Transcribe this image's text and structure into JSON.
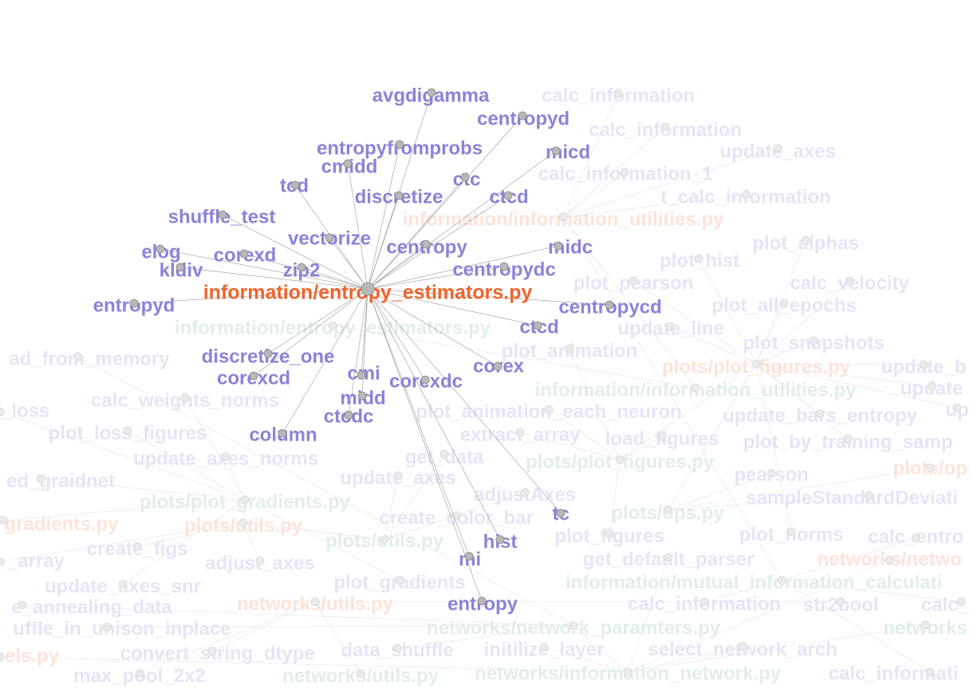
{
  "colors": {
    "focus": "#f0642a",
    "neighbor": "#8a83d8",
    "faded_green": "#e0efe9",
    "faded_purple": "#e7e5f5",
    "faded_orange": "#fde3d8"
  },
  "focus_node": {
    "label": "information/entropy_estimators.py"
  },
  "neighbor_nodes": [
    {
      "label": "avgdigamma"
    },
    {
      "label": "centropyd"
    },
    {
      "label": "entropyfromprobs"
    },
    {
      "label": "micd"
    },
    {
      "label": "cmidd"
    },
    {
      "label": "ctc"
    },
    {
      "label": "tcd"
    },
    {
      "label": "discretize"
    },
    {
      "label": "ctcd"
    },
    {
      "label": "shuffle_test"
    },
    {
      "label": "vectorize"
    },
    {
      "label": "centropy"
    },
    {
      "label": "midc"
    },
    {
      "label": "elog"
    },
    {
      "label": "corexd"
    },
    {
      "label": "kldiv"
    },
    {
      "label": "zip2"
    },
    {
      "label": "centropydc"
    },
    {
      "label": "entropyd"
    },
    {
      "label": "centropycd"
    },
    {
      "label": "ctcd"
    },
    {
      "label": "discretize_one"
    },
    {
      "label": "corex"
    },
    {
      "label": "corexcd"
    },
    {
      "label": "cmi"
    },
    {
      "label": "corexdc"
    },
    {
      "label": "midd"
    },
    {
      "label": "ctcdc"
    },
    {
      "label": "column"
    },
    {
      "label": "tc"
    },
    {
      "label": "hist"
    },
    {
      "label": "mi"
    },
    {
      "label": "entropy"
    }
  ],
  "background_nodes": [
    {
      "label": "calc_information",
      "tone": "purple"
    },
    {
      "label": "calc_information",
      "tone": "purple"
    },
    {
      "label": "update_axes",
      "tone": "purple"
    },
    {
      "label": "calc_information_1",
      "tone": "purple"
    },
    {
      "label": "t_calc_information",
      "tone": "purple"
    },
    {
      "label": "information/information_utilities.py",
      "tone": "orange"
    },
    {
      "label": "plot_alphas",
      "tone": "purple"
    },
    {
      "label": "plot_hist",
      "tone": "purple"
    },
    {
      "label": "plot_pearson",
      "tone": "purple"
    },
    {
      "label": "calc_velocity",
      "tone": "purple"
    },
    {
      "label": "plot_all_epochs",
      "tone": "purple"
    },
    {
      "label": "information/entropy_estimators.py",
      "tone": "green"
    },
    {
      "label": "update_line",
      "tone": "purple"
    },
    {
      "label": "plot_snapshots",
      "tone": "purple"
    },
    {
      "label": "ad_from_memory",
      "tone": "purple"
    },
    {
      "label": "plot_animation",
      "tone": "purple"
    },
    {
      "label": "plots/plot_figures.py",
      "tone": "orange"
    },
    {
      "label": "update_b",
      "tone": "purple"
    },
    {
      "label": "information/information_utilities.py",
      "tone": "green"
    },
    {
      "label": "update",
      "tone": "purple"
    },
    {
      "label": "r_loss",
      "tone": "purple"
    },
    {
      "label": "calc_weights_norms",
      "tone": "purple"
    },
    {
      "label": "plot_animation_each_neuron",
      "tone": "purple"
    },
    {
      "label": "update_bars_entropy",
      "tone": "purple"
    },
    {
      "label": "up",
      "tone": "purple"
    },
    {
      "label": "plot_loss_figures",
      "tone": "purple"
    },
    {
      "label": "extract_array",
      "tone": "purple"
    },
    {
      "label": "load_figures",
      "tone": "purple"
    },
    {
      "label": "plot_by_training_samp",
      "tone": "purple"
    },
    {
      "label": "update_axes_norms",
      "tone": "purple"
    },
    {
      "label": "get_data",
      "tone": "purple"
    },
    {
      "label": "plots/plot_figures.py",
      "tone": "green"
    },
    {
      "label": "plots/op",
      "tone": "orange"
    },
    {
      "label": "ed_graidnet",
      "tone": "purple"
    },
    {
      "label": "update_axes",
      "tone": "purple"
    },
    {
      "label": "pearson",
      "tone": "purple"
    },
    {
      "label": "plots/plot_gradients.py",
      "tone": "green"
    },
    {
      "label": "adjustAxes",
      "tone": "purple"
    },
    {
      "label": "sampleStandardDeviati",
      "tone": "purple"
    },
    {
      "label": "gradients.py",
      "tone": "orange"
    },
    {
      "label": "plots/utils.py",
      "tone": "orange"
    },
    {
      "label": "create_color_bar",
      "tone": "purple"
    },
    {
      "label": "plots/ops.py",
      "tone": "green"
    },
    {
      "label": "plots/utils.py",
      "tone": "green"
    },
    {
      "label": "plot_figures",
      "tone": "purple"
    },
    {
      "label": "plot_norms",
      "tone": "purple"
    },
    {
      "label": "calc_entro",
      "tone": "purple"
    },
    {
      "label": "create_figs",
      "tone": "purple"
    },
    {
      "label": "_array",
      "tone": "purple"
    },
    {
      "label": "adjust_axes",
      "tone": "purple"
    },
    {
      "label": "get_default_parser",
      "tone": "purple"
    },
    {
      "label": "networks/netwo",
      "tone": "orange"
    },
    {
      "label": "plot_gradients",
      "tone": "purple"
    },
    {
      "label": "information/mutual_information_calculati",
      "tone": "green"
    },
    {
      "label": "update_axes_snr",
      "tone": "purple"
    },
    {
      "label": "e_annealing_data",
      "tone": "purple"
    },
    {
      "label": "networks/utils.py",
      "tone": "orange"
    },
    {
      "label": "calc_information",
      "tone": "purple"
    },
    {
      "label": "str2bool",
      "tone": "purple"
    },
    {
      "label": "calc_p",
      "tone": "purple"
    },
    {
      "label": "uffle_in_unison_inplace",
      "tone": "purple"
    },
    {
      "label": "networks/network_paramters.py",
      "tone": "green"
    },
    {
      "label": "networks",
      "tone": "green"
    },
    {
      "label": "els.py",
      "tone": "orange"
    },
    {
      "label": "_convert_string_dtype",
      "tone": "purple"
    },
    {
      "label": "data_shuffle",
      "tone": "purple"
    },
    {
      "label": "initilize_layer",
      "tone": "purple"
    },
    {
      "label": "select_network_arch",
      "tone": "purple"
    },
    {
      "label": "max_pool_2x2",
      "tone": "purple"
    },
    {
      "label": "networks/utils.py",
      "tone": "green"
    },
    {
      "label": "networks/information_network.py",
      "tone": "green"
    },
    {
      "label": "calc_informati",
      "tone": "purple"
    }
  ]
}
